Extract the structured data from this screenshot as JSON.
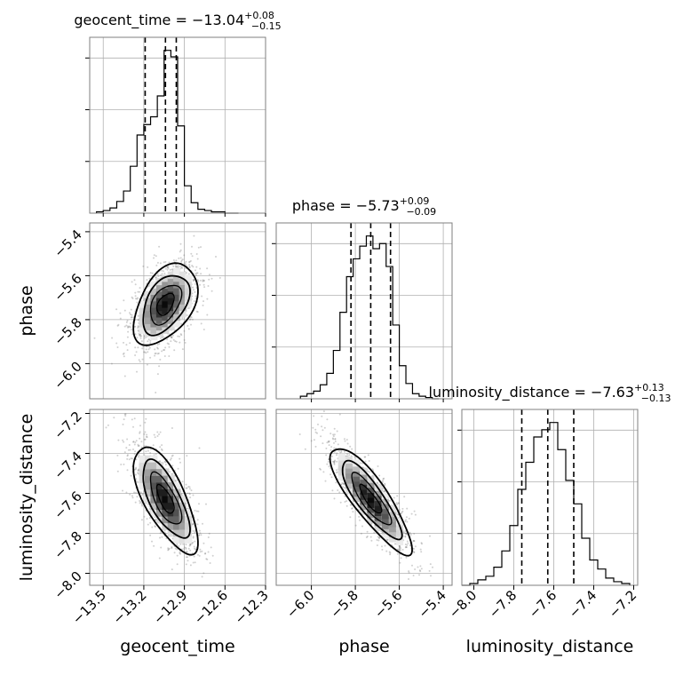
{
  "chart_data": {
    "type": "corner",
    "parameters": [
      "geocent_time",
      "phase",
      "luminosity_distance"
    ],
    "titles": [
      {
        "name": "geocent_time",
        "median": "−13.04",
        "upper": "+0.08",
        "lower": "−0.15"
      },
      {
        "name": "phase",
        "median": "−5.73",
        "upper": "+0.09",
        "lower": "−0.09"
      },
      {
        "name": "luminosity_distance",
        "median": "−7.63",
        "upper": "+0.13",
        "lower": "−0.13"
      }
    ],
    "ranges": {
      "geocent_time": [
        -13.6,
        -12.3
      ],
      "phase": [
        -6.16,
        -5.36
      ],
      "luminosity_distance": [
        -8.06,
        -7.18
      ]
    },
    "ticks": {
      "geocent_time": [
        "−13.5",
        "−13.2",
        "−12.9",
        "−12.6",
        "−12.3"
      ],
      "phase": [
        "−6.0",
        "−5.8",
        "−5.6",
        "−5.4"
      ],
      "luminosity_distance": [
        "−8.0",
        "−7.8",
        "−7.6",
        "−7.4",
        "−7.2"
      ]
    },
    "tick_values": {
      "geocent_time": [
        -13.5,
        -13.2,
        -12.9,
        -12.6,
        -12.3
      ],
      "phase": [
        -6.0,
        -5.8,
        -5.6,
        -5.4
      ],
      "luminosity_distance": [
        -8.0,
        -7.8,
        -7.6,
        -7.4,
        -7.2
      ]
    },
    "quantiles": {
      "geocent_time": [
        -13.19,
        -13.04,
        -12.96
      ],
      "phase": [
        -5.82,
        -5.73,
        -5.64
      ],
      "luminosity_distance": [
        -7.76,
        -7.63,
        -7.5
      ]
    },
    "histograms": {
      "geocent_time": {
        "edges": [
          -13.55,
          -13.5,
          -13.45,
          -13.4,
          -13.35,
          -13.3,
          -13.25,
          -13.2,
          -13.15,
          -13.1,
          -13.05,
          -13.0,
          -12.95,
          -12.9,
          -12.85,
          -12.8,
          -12.75,
          -12.7,
          -12.65,
          -12.6,
          -12.55,
          -12.5
        ],
        "counts": [
          1,
          2,
          4,
          9,
          17,
          36,
          60,
          68,
          74,
          90,
          125,
          120,
          67,
          21,
          8,
          3,
          2,
          1,
          1,
          0,
          0
        ]
      },
      "phase": {
        "edges": [
          -6.05,
          -6.02,
          -5.99,
          -5.96,
          -5.93,
          -5.9,
          -5.87,
          -5.84,
          -5.81,
          -5.78,
          -5.75,
          -5.72,
          -5.69,
          -5.66,
          -5.63,
          -5.6,
          -5.57,
          -5.54,
          -5.51,
          -5.48,
          -5.45,
          -5.42
        ],
        "counts": [
          2,
          4,
          6,
          11,
          20,
          38,
          68,
          96,
          110,
          120,
          128,
          118,
          122,
          104,
          58,
          26,
          12,
          4,
          2,
          1,
          0
        ]
      },
      "luminosity_distance": {
        "edges": [
          -8.06,
          -8.02,
          -7.98,
          -7.94,
          -7.9,
          -7.86,
          -7.82,
          -7.78,
          -7.74,
          -7.7,
          -7.66,
          -7.62,
          -7.58,
          -7.54,
          -7.5,
          -7.46,
          -7.42,
          -7.38,
          -7.34,
          -7.3,
          -7.26,
          -7.22
        ],
        "counts": [
          0,
          1,
          3,
          5,
          10,
          19,
          33,
          53,
          68,
          82,
          86,
          90,
          75,
          58,
          45,
          26,
          14,
          9,
          4,
          2,
          1
        ]
      }
    },
    "correlations": {
      "phase|geocent_time": 0.45,
      "luminosity_distance|geocent_time": -0.7,
      "luminosity_distance|phase": -0.85
    }
  },
  "axis_labels": {
    "x": [
      "geocent_time",
      "phase",
      "luminosity_distance"
    ],
    "y": [
      "phase",
      "luminosity_distance"
    ]
  }
}
